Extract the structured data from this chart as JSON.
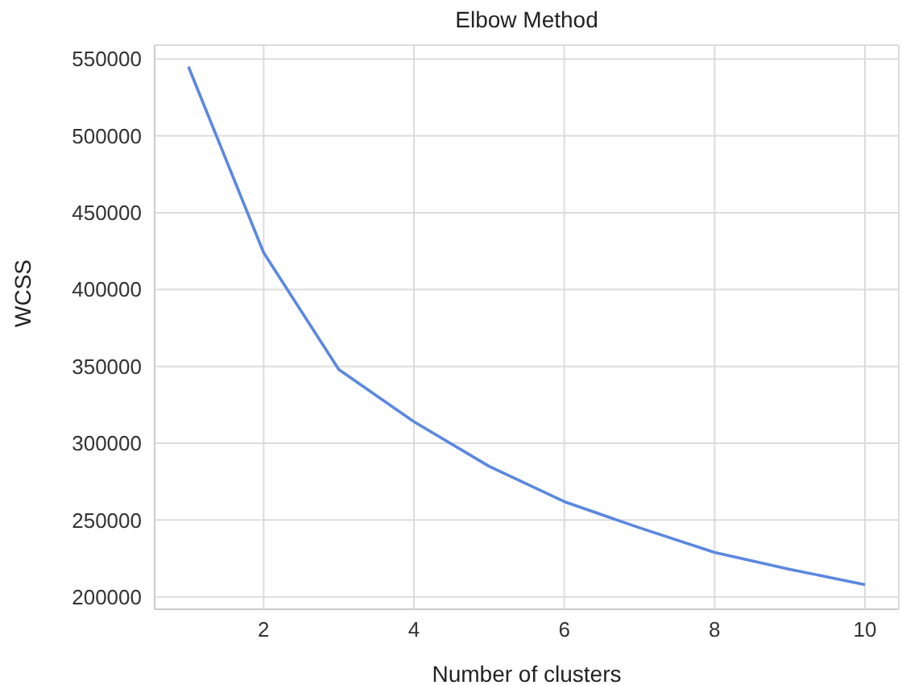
{
  "chart_data": {
    "type": "line",
    "title": "Elbow Method",
    "xlabel": "Number of clusters",
    "ylabel": "WCSS",
    "x": [
      1,
      2,
      3,
      4,
      5,
      6,
      7,
      8,
      9,
      10
    ],
    "series": [
      {
        "color": "#5b88e0",
        "values": [
          545000,
          424000,
          348000,
          314000,
          285000,
          262000,
          245000,
          229000,
          218000,
          208000
        ]
      }
    ],
    "xlim": [
      0.55,
      10.45
    ],
    "xticks": [
      2,
      4,
      6,
      8,
      10
    ],
    "ylim": [
      192000,
      559000
    ],
    "yticks": [
      200000,
      250000,
      300000,
      350000,
      400000,
      450000,
      500000,
      550000
    ],
    "grid": true,
    "legend": false,
    "marker": "none",
    "line_style": "solid"
  }
}
